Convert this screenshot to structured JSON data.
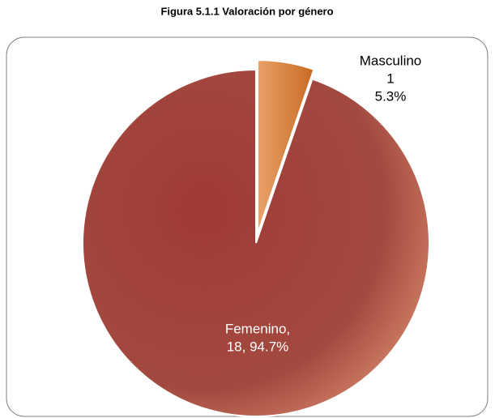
{
  "chart_data": {
    "type": "pie",
    "title": "Figura 5.1.1 Valoración por género",
    "values": [
      18,
      1
    ],
    "colors": [
      "#a44740",
      "#d9843f"
    ],
    "labels": [
      [
        "Femenino,",
        "18, 94.7%"
      ],
      [
        "Masculino",
        "1",
        "5.3%"
      ]
    ],
    "exploded": [
      false,
      true
    ]
  }
}
